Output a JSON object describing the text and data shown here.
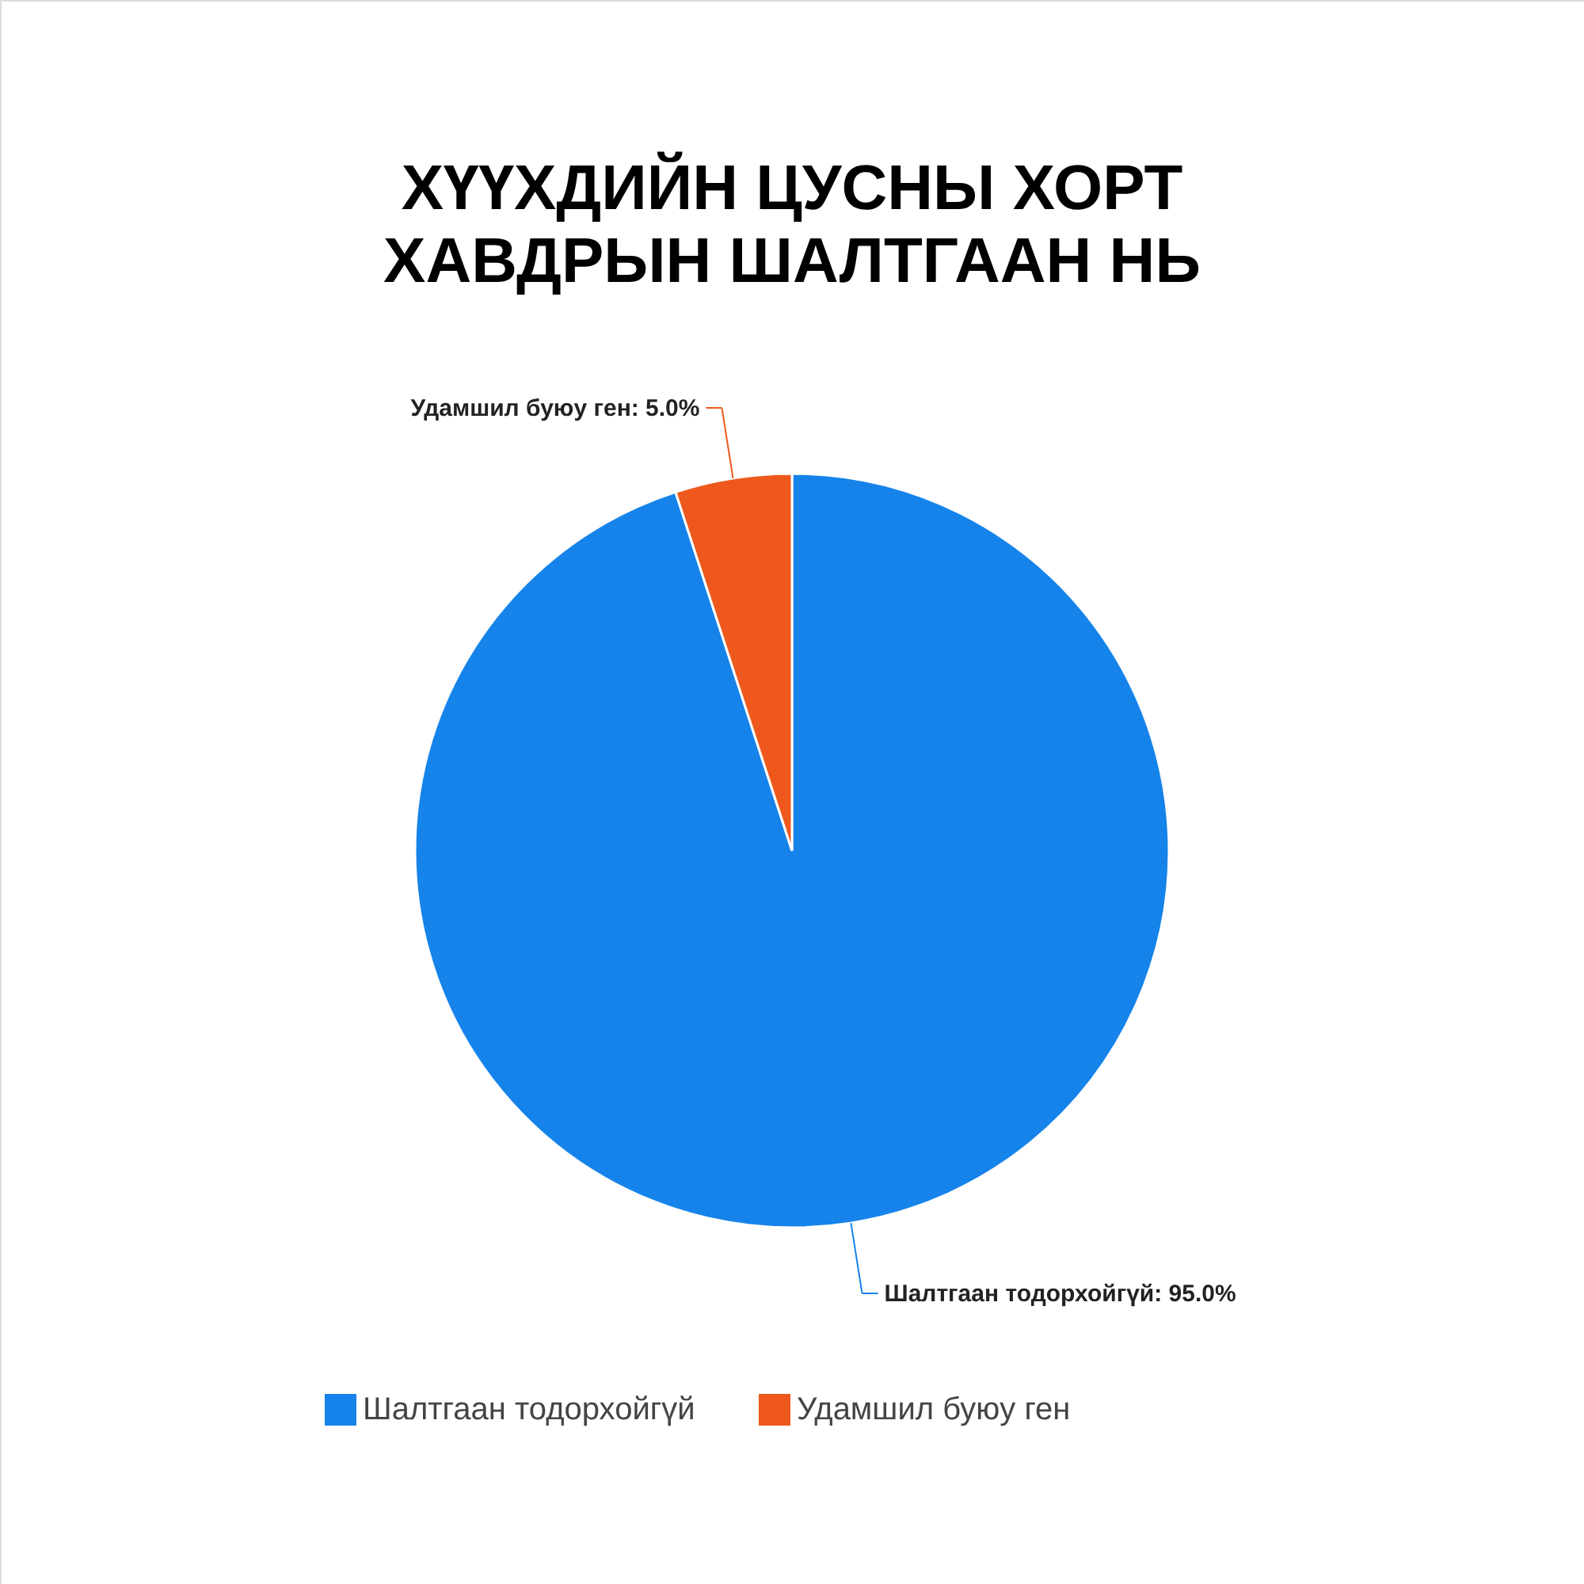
{
  "chart_data": {
    "type": "pie",
    "title": "ХҮҮХДИЙН ЦУСНЫ ХОРТ\nХАВДРЫН ШАЛТГААН НЬ",
    "categories": [
      "Шалтгаан тодорхойгүй",
      "Удамшил буюу ген"
    ],
    "values": [
      95.0,
      5.0
    ],
    "colors": [
      "#1683eb",
      "#ee581d"
    ],
    "value_labels": [
      "Шалтгаан тодорхойгүй: 95.0%",
      "Удамшил буюу ген: 5.0%"
    ],
    "legend": "bottom"
  }
}
